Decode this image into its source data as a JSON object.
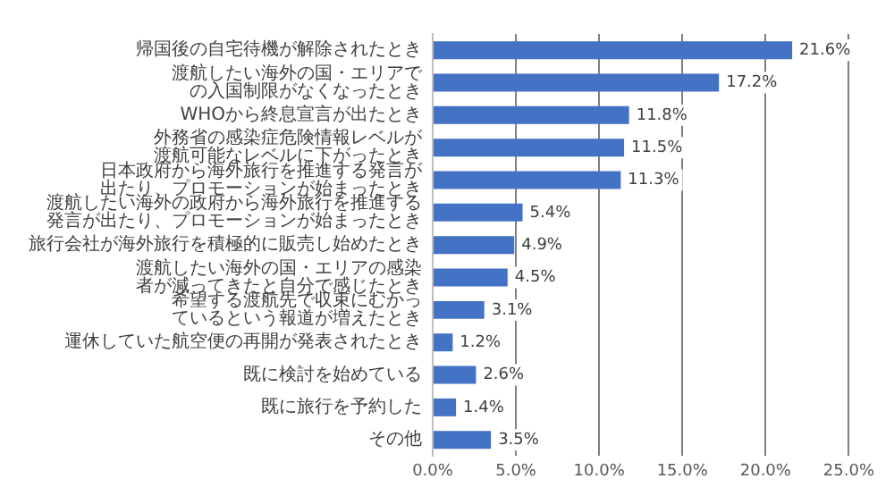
{
  "chart_data": {
    "type": "bar",
    "orientation": "horizontal",
    "categories": [
      "帰国後の自宅待機が解除されたとき",
      "渡航したい海外の国・エリアでの入国制限がなくなったとき",
      "WHOから終息宣言が出たとき",
      "外務省の感染症危険情報レベルが渡航可能なレベルに下がったとき",
      "日本政府から海外旅行を推進する発言が出たり、プロモーションが始まったとき",
      "渡航したい海外の政府から海外旅行を推進する発言が出たり、プロモーションが始まったとき",
      "旅行会社が海外旅行を積極的に販売し始めたとき",
      "渡航したい海外の国・エリアの感染者が減ってきたと自分で感じたとき",
      "希望する渡航先で収束にむかっているという報道が増えたとき",
      "運休していた航空便の再開が発表されたとき",
      "既に検討を始めている",
      "既に旅行を予約した",
      "その他"
    ],
    "values": [
      21.6,
      17.2,
      11.8,
      11.5,
      11.3,
      5.4,
      4.9,
      4.5,
      3.1,
      1.2,
      2.6,
      1.4,
      3.5
    ],
    "value_labels": [
      "21.6%",
      "17.2%",
      "11.8%",
      "11.5%",
      "11.3%",
      "5.4%",
      "4.9%",
      "4.5%",
      "3.1%",
      "1.2%",
      "2.6%",
      "1.4%",
      "3.5%"
    ],
    "color": "#4472c4",
    "xlim": [
      0,
      25
    ],
    "xticks": [
      {
        "value": 0,
        "label": "0.0%"
      },
      {
        "value": 5,
        "label": "5.0%"
      },
      {
        "value": 10,
        "label": "10.0%"
      },
      {
        "value": 15,
        "label": "15.0%"
      },
      {
        "value": 20,
        "label": "20.0%"
      },
      {
        "value": 25,
        "label": "25.0%"
      }
    ],
    "grid": "x"
  }
}
